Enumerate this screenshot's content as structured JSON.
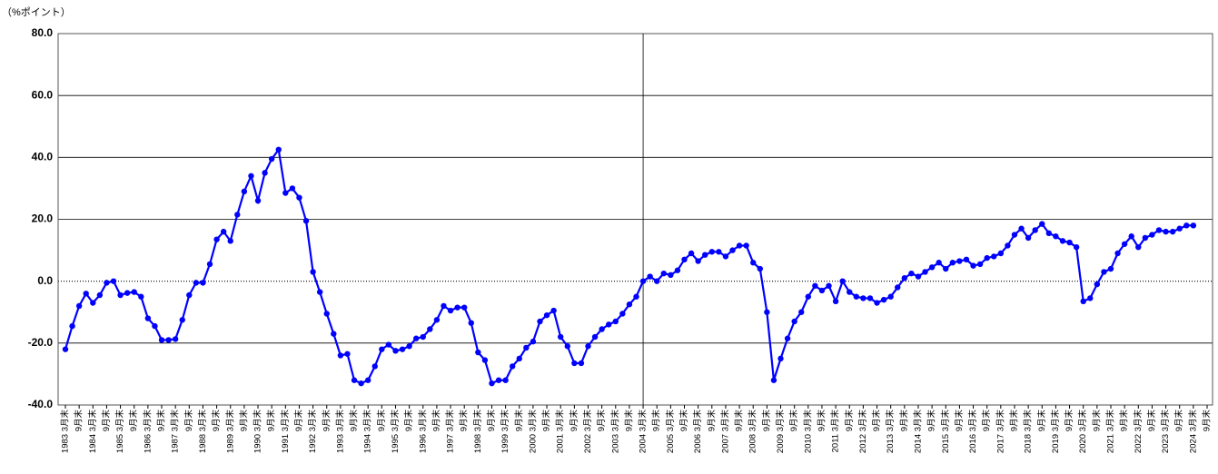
{
  "chart_data": {
    "type": "line",
    "y_unit_label": "（%ポイント）",
    "ylim": [
      -40,
      80
    ],
    "yticks": [
      {
        "value": -40,
        "label": "-40.0"
      },
      {
        "value": -20,
        "label": "-20.0"
      },
      {
        "value": 0,
        "label": "0.0"
      },
      {
        "value": 20,
        "label": "20.0"
      },
      {
        "value": 40,
        "label": "40.0"
      },
      {
        "value": 60,
        "label": "60.0"
      },
      {
        "value": 80,
        "label": "80.0"
      }
    ],
    "grid": true,
    "categories": [
      "1983 3月末",
      null,
      "9月末",
      null,
      "1984 3月末",
      null,
      "9月末",
      null,
      "1985 3月末",
      null,
      "9月末",
      null,
      "1986 3月末",
      null,
      "9月末",
      null,
      "1987 3月末",
      null,
      "9月末",
      null,
      "1988 3月末",
      null,
      "9月末",
      null,
      "1989 3月末",
      null,
      "9月末",
      null,
      "1990 3月末",
      null,
      "9月末",
      null,
      "1991 3月末",
      null,
      "9月末",
      null,
      "1992 3月末",
      null,
      "9月末",
      null,
      "1993 3月末",
      null,
      "9月末",
      null,
      "1994 3月末",
      null,
      "9月末",
      null,
      "1995 3月末",
      null,
      "9月末",
      null,
      "1996 3月末",
      null,
      "9月末",
      null,
      "1997 3月末",
      null,
      "9月末",
      null,
      "1998 3月末",
      null,
      "9月末",
      null,
      "1999 3月末",
      null,
      "9月末",
      null,
      "2000 3月末",
      null,
      "9月末",
      null,
      "2001 3月末",
      null,
      "9月末",
      null,
      "2002 3月末",
      null,
      "9月末",
      null,
      "2003 3月末",
      null,
      "9月末",
      null,
      "2004 3月末",
      null,
      "9月末",
      null,
      "2005 3月末",
      null,
      "9月末",
      null,
      "2006 3月末",
      null,
      "9月末",
      null,
      "2007 3月末",
      null,
      "9月末",
      null,
      "2008 3月末",
      null,
      "9月末",
      null,
      "2009 3月末",
      null,
      "9月末",
      null,
      "2010 3月末",
      null,
      "9月末",
      null,
      "2011 3月末",
      null,
      "9月末",
      null,
      "2012 3月末",
      null,
      "9月末",
      null,
      "2013 3月末",
      null,
      "9月末",
      null,
      "2014 3月末",
      null,
      "9月末",
      null,
      "2015 3月末",
      null,
      "9月末",
      null,
      "2016 3月末",
      null,
      "9月末",
      null,
      "2017 3月末",
      null,
      "9月末",
      null,
      "2018 3月末",
      null,
      "9月末",
      null,
      "2019 3月末",
      null,
      "9月末",
      null,
      "2020 3月末",
      null,
      "9月末",
      null,
      "2021 3月末",
      null,
      "9月末",
      null,
      "2022 3月末",
      null,
      "9月末",
      null,
      "2023 3月末",
      null,
      "9月末",
      null,
      "2024 3月末",
      null,
      "9月末"
    ],
    "series": [
      {
        "color": "#0000ff",
        "values": [
          -22,
          -14.5,
          -8,
          -4,
          -7,
          -4.5,
          -0.5,
          0,
          -4.5,
          -3.8,
          -3.5,
          -5,
          -12,
          -14.5,
          -19,
          -19,
          -18.7,
          -12.5,
          -4.5,
          -0.5,
          -0.5,
          5.5,
          13.5,
          16,
          13,
          21.5,
          29,
          34,
          26,
          35,
          39.5,
          42.5,
          28.5,
          30,
          27,
          19.5,
          3,
          -3.5,
          -10.5,
          -17,
          -24,
          -23.5,
          -32,
          -33,
          -32,
          -27.5,
          -22,
          -20.5,
          -22.5,
          -22,
          -21,
          -18.5,
          -18,
          -15.5,
          -12.5,
          -8,
          -9.5,
          -8.5,
          -8.5,
          -13.5,
          -23,
          -25.5,
          -33,
          -32,
          -32,
          -27.5,
          -25,
          -21.5,
          -19.5,
          -13,
          -11,
          -9.5,
          -18,
          -21,
          -26.5,
          -26.5,
          -21,
          -18,
          -15.5,
          -14,
          -13,
          -10.5,
          -7.5,
          -5,
          0,
          1.5,
          0,
          2.5,
          2,
          3.5,
          7,
          9,
          6.5,
          8.5,
          9.5,
          9.5,
          8,
          10,
          11.5,
          11.5,
          6,
          4,
          -10,
          -32,
          -25,
          -18.5,
          -13,
          -10,
          -5,
          -1.5,
          -3,
          -1.5,
          -6.5,
          0,
          -3.5,
          -5,
          -5.5,
          -5.5,
          -7,
          -6,
          -5,
          -2,
          1,
          2.5,
          1.5,
          3,
          4.5,
          6,
          4,
          6,
          6.5,
          7,
          5,
          5.5,
          7.5,
          8,
          9,
          11.5,
          15,
          17,
          14,
          16.5,
          18.5,
          15.5,
          14.5,
          13,
          12.5,
          11,
          -6.5,
          -5.5,
          -1,
          3,
          4,
          9,
          12,
          14.5,
          11,
          14,
          15,
          16.5,
          16,
          16,
          17,
          18,
          18,
          null,
          null
        ]
      }
    ]
  }
}
